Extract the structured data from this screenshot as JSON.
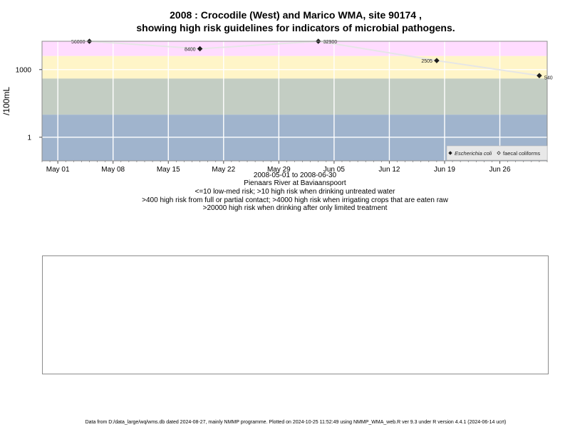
{
  "title": {
    "line1": "2008 : Crocodile (West) and Marico WMA, site 90174 ,",
    "line2": "showing high risk guidelines for indicators of microbial pathogens."
  },
  "captions": {
    "date_range": "2008-05-01 to 2008-06-30",
    "site_name": "Pienaars River at Baviaanspoort",
    "guideline_1": "<=10 low-med risk; >10 high risk when drinking untreated water",
    "guideline_2": ">400 high risk from full or partial contact; >4000 high risk when irrigating crops that are eaten raw",
    "guideline_3": ">20000 high risk when drinking after only limited treatment"
  },
  "footer": "Data from D:/data_large/wq/wms.db dated 2024-08-27, mainly NMMP programme. Plotted on 2024-10-25 11:52:49 using NMMP_WMA_web.R ver 9.3 under R version 4.4.1 (2024-06-14 ucrt)",
  "colors": {
    "band_above_20000": "#ffb6c1",
    "band_4000_20000": "#ffdcff",
    "band_400_4000": "#fff5c8",
    "band_10_400": "#c3cdc3",
    "band_below_10": "#a0b4cd",
    "line": "#e6e6e6",
    "point": "#1e1e1e",
    "gridline": "#ffffff"
  },
  "chart_data": {
    "type": "line",
    "title": "2008 : Crocodile (West) and Marico WMA, site 90174 , showing high risk guidelines for indicators of microbial pathogens.",
    "xlabel": "",
    "ylabel": "/100mL",
    "y_scale": "log10",
    "ylim": [
      0.09,
      18000
    ],
    "xlim": [
      "2008-04-29",
      "2008-07-02"
    ],
    "x_ticks": [
      {
        "date": "2008-05-01",
        "label": "May 01"
      },
      {
        "date": "2008-05-08",
        "label": "May 08"
      },
      {
        "date": "2008-05-15",
        "label": "May 15"
      },
      {
        "date": "2008-05-22",
        "label": "May 22"
      },
      {
        "date": "2008-05-29",
        "label": "May 29"
      },
      {
        "date": "2008-06-05",
        "label": "Jun 05"
      },
      {
        "date": "2008-06-12",
        "label": "Jun 12"
      },
      {
        "date": "2008-06-19",
        "label": "Jun 19"
      },
      {
        "date": "2008-06-26",
        "label": "Jun 26"
      }
    ],
    "y_ticks": [
      {
        "value": 1,
        "label": "1"
      },
      {
        "value": 1000,
        "label": "1000"
      }
    ],
    "grid": true,
    "risk_bands": [
      {
        "from": 20000,
        "to": 1000000,
        "color_key": "band_above_20000"
      },
      {
        "from": 4000,
        "to": 20000,
        "color_key": "band_4000_20000"
      },
      {
        "from": 400,
        "to": 4000,
        "color_key": "band_400_4000"
      },
      {
        "from": 10,
        "to": 400,
        "color_key": "band_10_400"
      },
      {
        "from": 0.01,
        "to": 10,
        "color_key": "band_below_10"
      }
    ],
    "series": [
      {
        "name": "Escherichia coli",
        "marker": "filled-diamond",
        "points": [
          {
            "x": "2008-05-05",
            "y": 56000,
            "label": "56000"
          },
          {
            "x": "2008-05-19",
            "y": 8400,
            "label": "8400"
          },
          {
            "x": "2008-06-03",
            "y": 32900,
            "label": "32900"
          },
          {
            "x": "2008-06-18",
            "y": 2505,
            "label": "2505"
          },
          {
            "x": "2008-07-01",
            "y": 540,
            "label": "540"
          }
        ]
      },
      {
        "name": "faecal coliforms",
        "marker": "open-diamond",
        "points": []
      }
    ],
    "legend": {
      "position": "bottom-right",
      "entries": [
        "Escherichia coli",
        "faecal coliforms"
      ]
    }
  }
}
